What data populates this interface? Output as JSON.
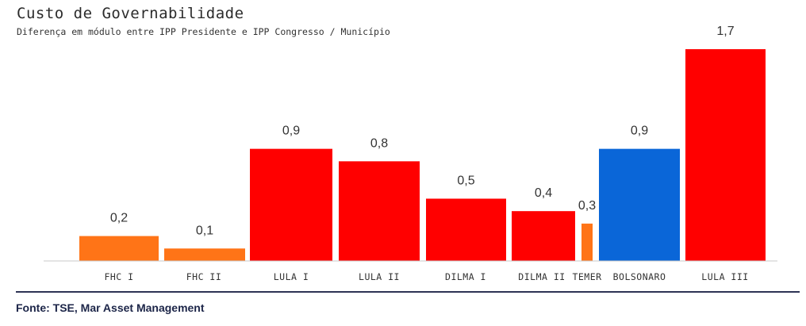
{
  "title": "Custo de Governabilidade",
  "subtitle": "Diferença em módulo entre IPP Presidente e IPP Congresso / Município",
  "source": "Fonte: TSE, Mar Asset Management",
  "chart_data": {
    "type": "bar",
    "title": "Custo de Governabilidade",
    "subtitle": "Diferença em módulo entre IPP Presidente e IPP Congresso / Município",
    "xlabel": "",
    "ylabel": "",
    "ylim": [
      0,
      1.7
    ],
    "grid": false,
    "legend": "none",
    "categories": [
      "FHC I",
      "FHC II",
      "LULA I",
      "LULA II",
      "DILMA I",
      "DILMA II",
      "TEMER",
      "BOLSONARO",
      "LULA III"
    ],
    "values": [
      0.2,
      0.1,
      0.9,
      0.8,
      0.5,
      0.4,
      0.3,
      0.9,
      1.7
    ],
    "value_labels": [
      "0,2",
      "0,1",
      "0,9",
      "0,8",
      "0,5",
      "0,4",
      "0,3",
      "0,9",
      "1,7"
    ],
    "colors": [
      "#FF7417",
      "#FF7417",
      "#FF0000",
      "#FF0000",
      "#FF0000",
      "#FF0000",
      "#FF7417",
      "#0A66D8",
      "#FF0000"
    ]
  }
}
